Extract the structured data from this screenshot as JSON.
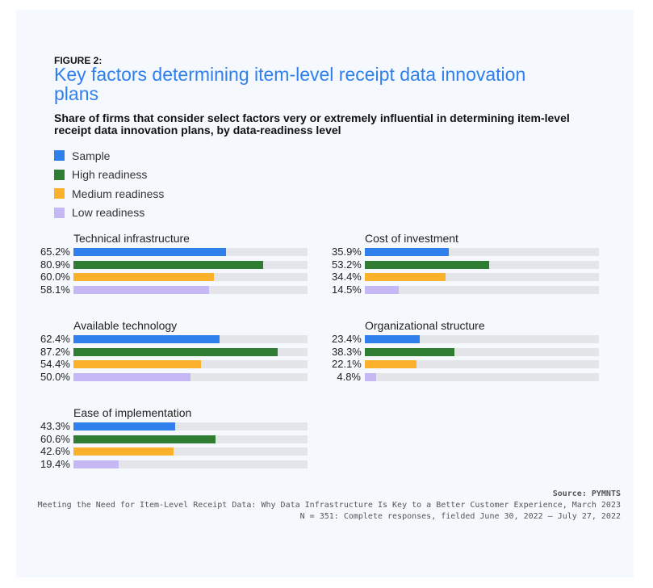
{
  "figure_label": "FIGURE 2:",
  "chart_data": {
    "type": "bar",
    "title": "Key factors determining item-level receipt data innovation plans",
    "subtitle": "Share of firms that consider select factors very or extremely influential in determining item-level receipt data innovation plans, by data-readiness level",
    "xlim": [
      0,
      100
    ],
    "legend_position": "top-left",
    "series": [
      {
        "name": "Sample",
        "color": "#2f80ed"
      },
      {
        "name": "High readiness",
        "color": "#2e7d32"
      },
      {
        "name": "Medium readiness",
        "color": "#fbb12b"
      },
      {
        "name": "Low readiness",
        "color": "#c5b8f5"
      }
    ],
    "panels": [
      {
        "title": "Technical infrastructure",
        "values": [
          65.2,
          80.9,
          60.0,
          58.1
        ],
        "labels": [
          "65.2%",
          "80.9%",
          "60.0%",
          "58.1%"
        ]
      },
      {
        "title": "Cost of investment",
        "values": [
          35.9,
          53.2,
          34.4,
          14.5
        ],
        "labels": [
          "35.9%",
          "53.2%",
          "34.4%",
          "14.5%"
        ]
      },
      {
        "title": "Available technology",
        "values": [
          62.4,
          87.2,
          54.4,
          50.0
        ],
        "labels": [
          "62.4%",
          "87.2%",
          "54.4%",
          "50.0%"
        ]
      },
      {
        "title": "Organizational structure",
        "values": [
          23.4,
          38.3,
          22.1,
          4.8
        ],
        "labels": [
          "23.4%",
          "38.3%",
          "22.1%",
          "4.8%"
        ]
      },
      {
        "title": "Ease of implementation",
        "values": [
          43.3,
          60.6,
          42.6,
          19.4
        ],
        "labels": [
          "43.3%",
          "60.6%",
          "42.6%",
          "19.4%"
        ]
      }
    ]
  },
  "footer": {
    "source": "Source: PYMNTS",
    "report": "Meeting the Need for Item-Level Receipt Data: Why Data Infrastructure Is Key to a Better Customer Experience, March 2023",
    "sample": "N = 351: Complete responses, fielded June 30, 2022 – July 27, 2022"
  }
}
